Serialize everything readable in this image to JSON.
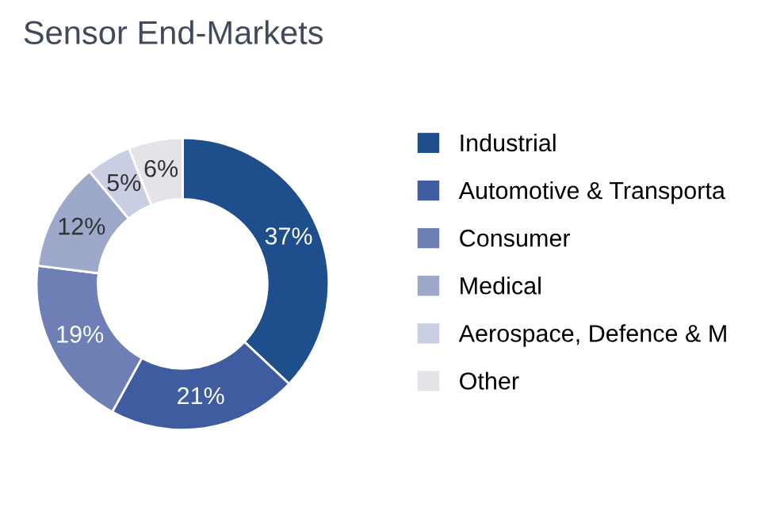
{
  "chart_data": {
    "type": "donut",
    "title": "Sensor End-Markets",
    "categories": [
      "Industrial",
      "Automotive & Transporta",
      "Consumer",
      "Medical",
      "Aerospace, Defence & M",
      "Other"
    ],
    "values": [
      37,
      21,
      19,
      12,
      5,
      6
    ],
    "value_labels": [
      "37%",
      "21%",
      "19%",
      "12%",
      "5%",
      "6%"
    ],
    "colors": [
      "#1f4e8c",
      "#3e5c9f",
      "#6e7fb6",
      "#9da8cb",
      "#c9cee2",
      "#e4e4e8"
    ],
    "legend": "right"
  }
}
